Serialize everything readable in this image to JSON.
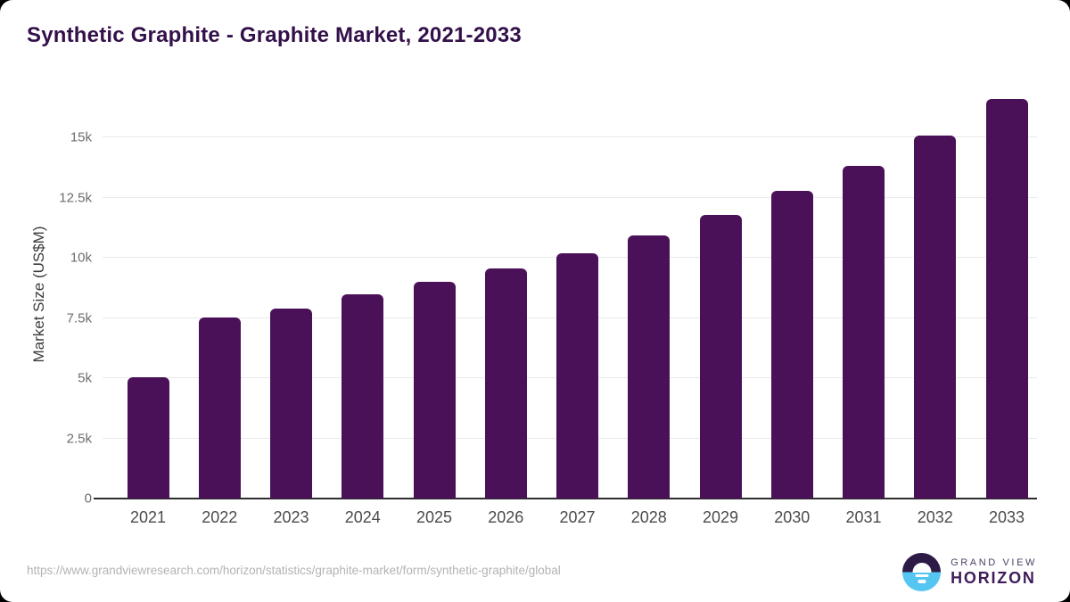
{
  "title": "Synthetic Graphite - Graphite Market, 2021-2033",
  "chart_data": {
    "type": "bar",
    "title": "Synthetic Graphite - Graphite Market, 2021-2033",
    "categories": [
      "2021",
      "2022",
      "2023",
      "2024",
      "2025",
      "2026",
      "2027",
      "2028",
      "2029",
      "2030",
      "2031",
      "2032",
      "2033"
    ],
    "values": [
      5050,
      7520,
      7900,
      8480,
      9000,
      9550,
      10200,
      10950,
      11800,
      12780,
      13830,
      15100,
      16600
    ],
    "xlabel": "",
    "ylabel": "Market Size (US$M)",
    "ylim": [
      0,
      17200
    ],
    "yticks": [
      0,
      2500,
      5000,
      7500,
      10000,
      12500,
      15000
    ],
    "ytick_labels": [
      "0",
      "2.5k",
      "5k",
      "7.5k",
      "10k",
      "12.5k",
      "15k"
    ],
    "grid": true,
    "legend": "none",
    "bar_color": "#4a1158"
  },
  "footer": {
    "source_url": "https://www.grandviewresearch.com/horizon/statistics/graphite-market/form/synthetic-graphite/global",
    "brand": {
      "line1": "GRAND VIEW",
      "line2": "HORIZON"
    }
  },
  "colors": {
    "card_background": "#ffffff",
    "page_background": "#000000",
    "title_text": "#33104a",
    "bar": "#4a1158",
    "gridline": "#e9e9e9",
    "axis_line": "#2e2e2e",
    "ytick_text": "#6d6d6d",
    "xtick_text": "#4b4b4b",
    "url_text": "#b3b3b3",
    "logo_purple": "#2e1a47",
    "logo_blue": "#55c6f2"
  }
}
